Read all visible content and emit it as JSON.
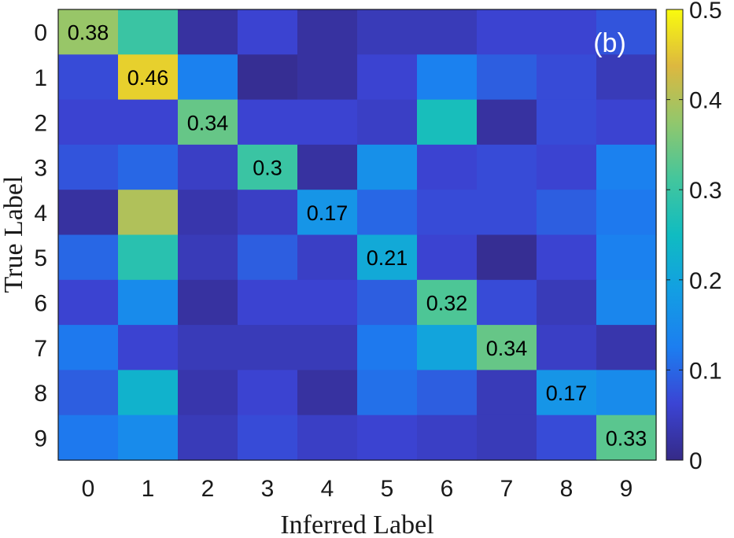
{
  "chart_data": {
    "type": "heatmap",
    "panel_label": "(b)",
    "xlabel": "Inferred Label",
    "ylabel": "True Label",
    "x_categories": [
      "0",
      "1",
      "2",
      "3",
      "4",
      "5",
      "6",
      "7",
      "8",
      "9"
    ],
    "y_categories": [
      "0",
      "1",
      "2",
      "3",
      "4",
      "5",
      "6",
      "7",
      "8",
      "9"
    ],
    "colorbar": {
      "range": [
        0,
        0.5
      ],
      "ticks": [
        0,
        0.1,
        0.2,
        0.3,
        0.4,
        0.5
      ],
      "tick_labels": [
        "0",
        "0.1",
        "0.2",
        "0.3",
        "0.4",
        "0.5"
      ],
      "colormap": "parula"
    },
    "values": [
      [
        0.38,
        0.3,
        0.02,
        0.06,
        0.02,
        0.04,
        0.04,
        0.06,
        0.06,
        0.08
      ],
      [
        0.07,
        0.46,
        0.13,
        0.01,
        0.02,
        0.06,
        0.13,
        0.09,
        0.07,
        0.04
      ],
      [
        0.06,
        0.06,
        0.34,
        0.06,
        0.06,
        0.05,
        0.26,
        0.02,
        0.07,
        0.06
      ],
      [
        0.08,
        0.1,
        0.05,
        0.3,
        0.02,
        0.16,
        0.06,
        0.07,
        0.06,
        0.13
      ],
      [
        0.02,
        0.4,
        0.03,
        0.05,
        0.17,
        0.1,
        0.07,
        0.07,
        0.09,
        0.12
      ],
      [
        0.1,
        0.28,
        0.04,
        0.09,
        0.05,
        0.21,
        0.06,
        0.01,
        0.06,
        0.13
      ],
      [
        0.06,
        0.15,
        0.02,
        0.06,
        0.06,
        0.09,
        0.32,
        0.07,
        0.04,
        0.14
      ],
      [
        0.12,
        0.06,
        0.04,
        0.04,
        0.04,
        0.12,
        0.2,
        0.34,
        0.05,
        0.03
      ],
      [
        0.09,
        0.23,
        0.03,
        0.06,
        0.02,
        0.11,
        0.09,
        0.04,
        0.17,
        0.15
      ],
      [
        0.12,
        0.15,
        0.04,
        0.07,
        0.05,
        0.06,
        0.05,
        0.04,
        0.07,
        0.33
      ]
    ],
    "annotations": [
      {
        "row": 0,
        "col": 0,
        "text": "0.38"
      },
      {
        "row": 1,
        "col": 1,
        "text": "0.46"
      },
      {
        "row": 2,
        "col": 2,
        "text": "0.34"
      },
      {
        "row": 3,
        "col": 3,
        "text": "0.3"
      },
      {
        "row": 4,
        "col": 4,
        "text": "0.17"
      },
      {
        "row": 5,
        "col": 5,
        "text": "0.21"
      },
      {
        "row": 6,
        "col": 6,
        "text": "0.32"
      },
      {
        "row": 7,
        "col": 7,
        "text": "0.34"
      },
      {
        "row": 8,
        "col": 8,
        "text": "0.17"
      },
      {
        "row": 9,
        "col": 9,
        "text": "0.33"
      }
    ]
  }
}
